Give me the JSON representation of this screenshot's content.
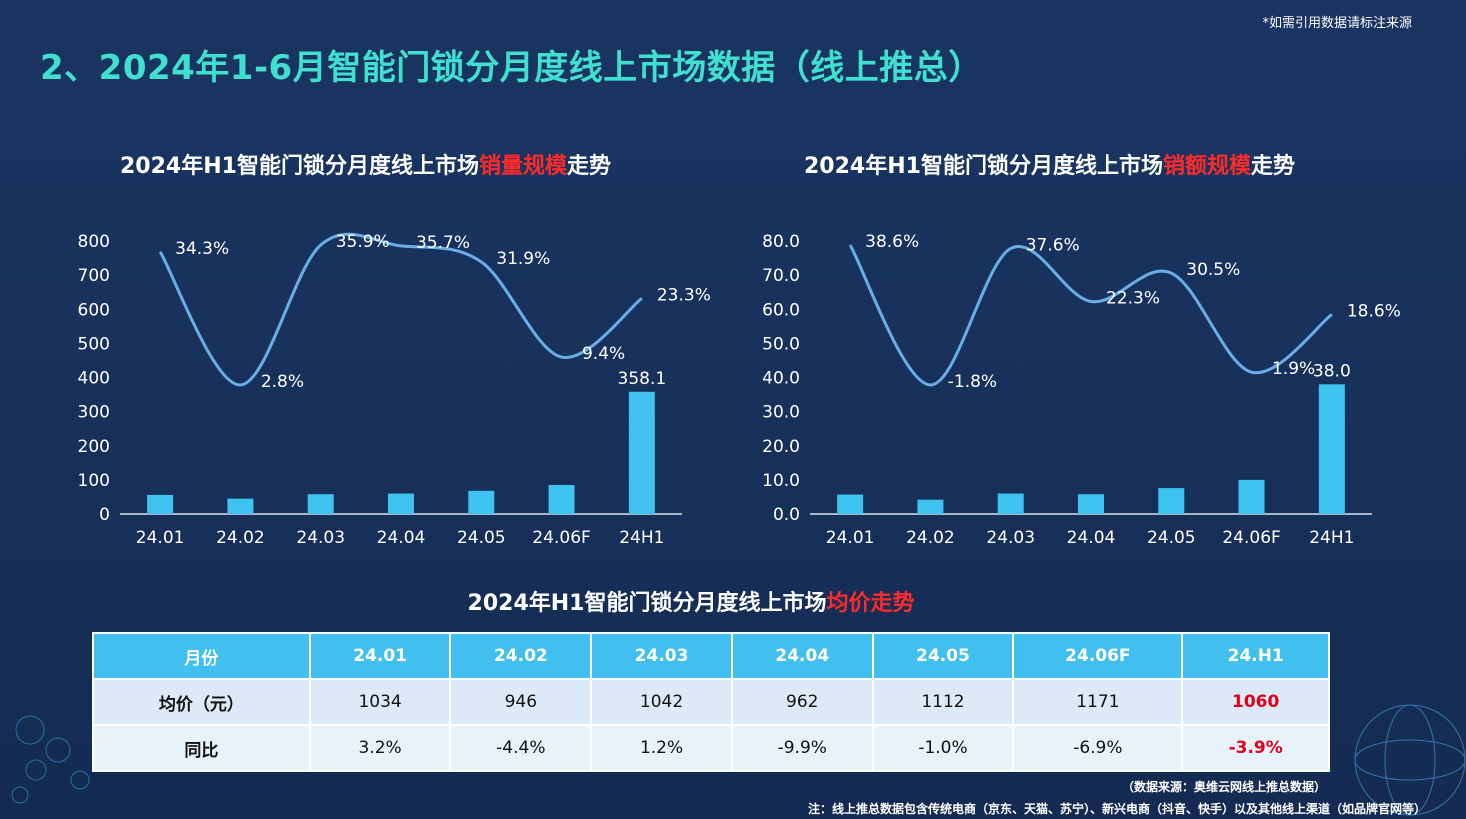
{
  "top_note": "*如需引用数据请标注来源",
  "title": "2、2024年1-6月智能门锁分月度线上市场数据（线上推总）",
  "charts_titles": {
    "left": {
      "pre": "2024年H1智能门锁分月度线上市场",
      "hl": "销量规模",
      "post": "走势"
    },
    "right": {
      "pre": "2024年H1智能门锁分月度线上市场",
      "hl": "销额规模",
      "post": "走势"
    }
  },
  "chart_data": [
    {
      "type": "bar",
      "categories": [
        "24.01",
        "24.02",
        "24.03",
        "24.04",
        "24.05",
        "24.06F",
        "24H1"
      ],
      "values": [
        56,
        45,
        58,
        60,
        68,
        85,
        358.1
      ],
      "value_labels": [
        "",
        "",
        "",
        "",
        "",
        "",
        "358.1"
      ],
      "yticks": [
        "800",
        "700",
        "600",
        "500",
        "400",
        "300",
        "200",
        "100",
        "0"
      ],
      "ylim": [
        0,
        800
      ],
      "line_values": [
        34.3,
        2.8,
        35.9,
        35.7,
        31.9,
        9.4,
        23.3
      ],
      "line_labels": [
        "34.3%",
        "2.8%",
        "35.9%",
        "35.7%",
        "31.9%",
        "9.4%",
        "23.3%"
      ],
      "colors": {
        "bar": "#3ec3f0",
        "line": "#6aaee8"
      }
    },
    {
      "type": "bar",
      "categories": [
        "24.01",
        "24.02",
        "24.03",
        "24.04",
        "24.05",
        "24.06F",
        "24H1"
      ],
      "values": [
        5.7,
        4.2,
        6.0,
        5.8,
        7.6,
        10.0,
        38.0
      ],
      "value_labels": [
        "",
        "",
        "",
        "",
        "",
        "",
        "38.0"
      ],
      "yticks": [
        "80.0",
        "70.0",
        "60.0",
        "50.0",
        "40.0",
        "30.0",
        "20.0",
        "10.0",
        "0.0"
      ],
      "ylim": [
        0,
        80
      ],
      "line_values": [
        38.6,
        -1.8,
        37.6,
        22.3,
        30.5,
        1.9,
        18.6
      ],
      "line_labels": [
        "38.6%",
        "-1.8%",
        "37.6%",
        "22.3%",
        "30.5%",
        "1.9%",
        "18.6%"
      ],
      "colors": {
        "bar": "#3ec3f0",
        "line": "#6aaee8"
      }
    }
  ],
  "table": {
    "title_pre": "2024年H1智能门锁分月度线上市场",
    "title_hl": "均价走势",
    "header": [
      "月份",
      "24.01",
      "24.02",
      "24.03",
      "24.04",
      "24.05",
      "24.06F",
      "24.H1"
    ],
    "rows": [
      [
        "均价（元）",
        "1034",
        "946",
        "1042",
        "962",
        "1112",
        "1171",
        "1060"
      ],
      [
        "同比",
        "3.2%",
        "-4.4%",
        "1.2%",
        "-9.9%",
        "-1.0%",
        "-6.9%",
        "-3.9%"
      ]
    ]
  },
  "source_line1": "（数据来源：奥维云网线上推总数据）",
  "source_line2": "注：线上推总数据包含传统电商（京东、天猫、苏宁）、新兴电商（抖音、快手）以及其他线上渠道（如品牌官网等）"
}
